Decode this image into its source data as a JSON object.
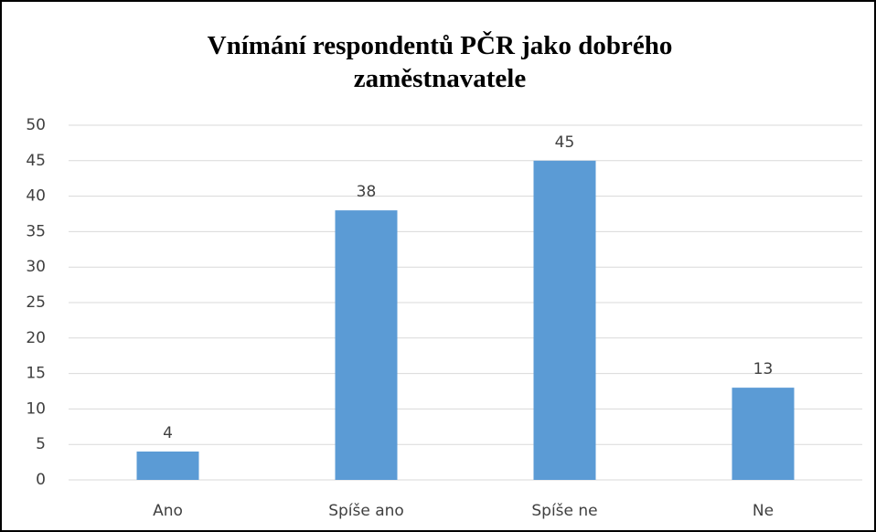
{
  "chart_data": {
    "type": "bar",
    "title": "Vnímání respondentů PČR jako dobrého zaměstnavatele",
    "categories": [
      "Ano",
      "Spíše ano",
      "Spíše ne",
      "Ne"
    ],
    "values": [
      4,
      38,
      45,
      13
    ],
    "color": "#5b9bd5",
    "ylim": [
      0,
      50
    ],
    "yticks": [
      0,
      5,
      10,
      15,
      20,
      25,
      30,
      35,
      40,
      45,
      50
    ],
    "grid": true
  }
}
